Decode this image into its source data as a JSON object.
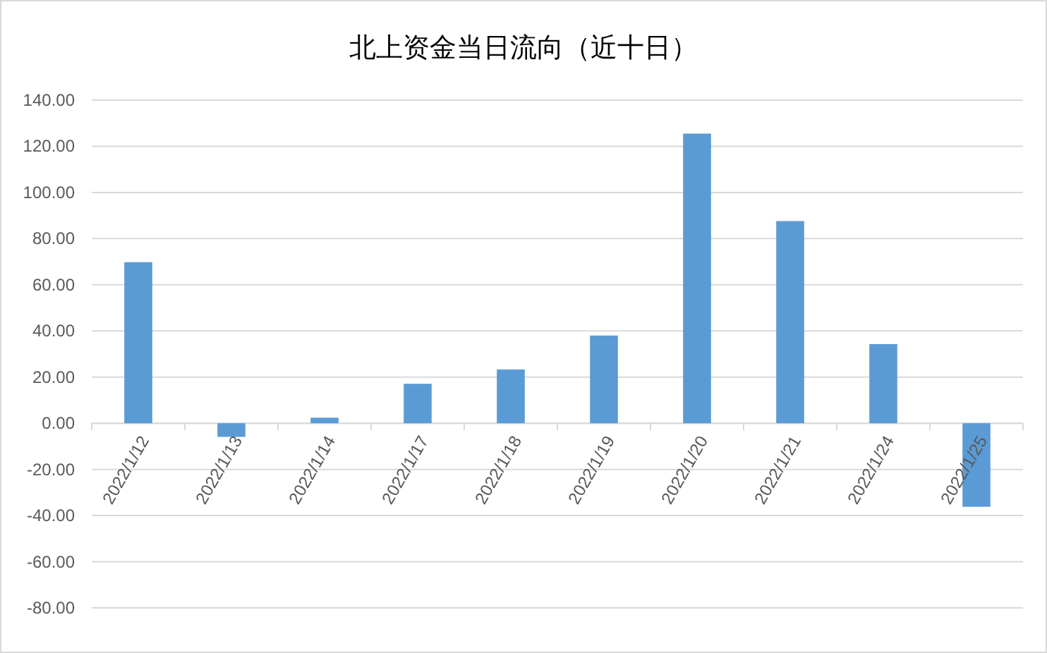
{
  "chart_data": {
    "type": "bar",
    "title": "北上资金当日流向（近十日）",
    "categories": [
      "2022/1/12",
      "2022/1/13",
      "2022/1/14",
      "2022/1/17",
      "2022/1/18",
      "2022/1/19",
      "2022/1/20",
      "2022/1/21",
      "2022/1/24",
      "2022/1/25"
    ],
    "values": [
      69.8,
      -5.9,
      2.4,
      17.1,
      23.3,
      38.0,
      125.5,
      87.6,
      34.3,
      -36.2
    ],
    "color": "#5b9bd5",
    "ylim": [
      -80,
      140
    ],
    "yticks": [
      {
        "value": -80,
        "label": "-80.00"
      },
      {
        "value": -60,
        "label": "-60.00"
      },
      {
        "value": -40,
        "label": "-40.00"
      },
      {
        "value": -20,
        "label": "-20.00"
      },
      {
        "value": 0,
        "label": "0.00"
      },
      {
        "value": 20,
        "label": "20.00"
      },
      {
        "value": 40,
        "label": "40.00"
      },
      {
        "value": 60,
        "label": "60.00"
      },
      {
        "value": 80,
        "label": "80.00"
      },
      {
        "value": 100,
        "label": "100.00"
      },
      {
        "value": 120,
        "label": "120.00"
      },
      {
        "value": 140,
        "label": "140.00"
      }
    ],
    "grid": "y"
  }
}
